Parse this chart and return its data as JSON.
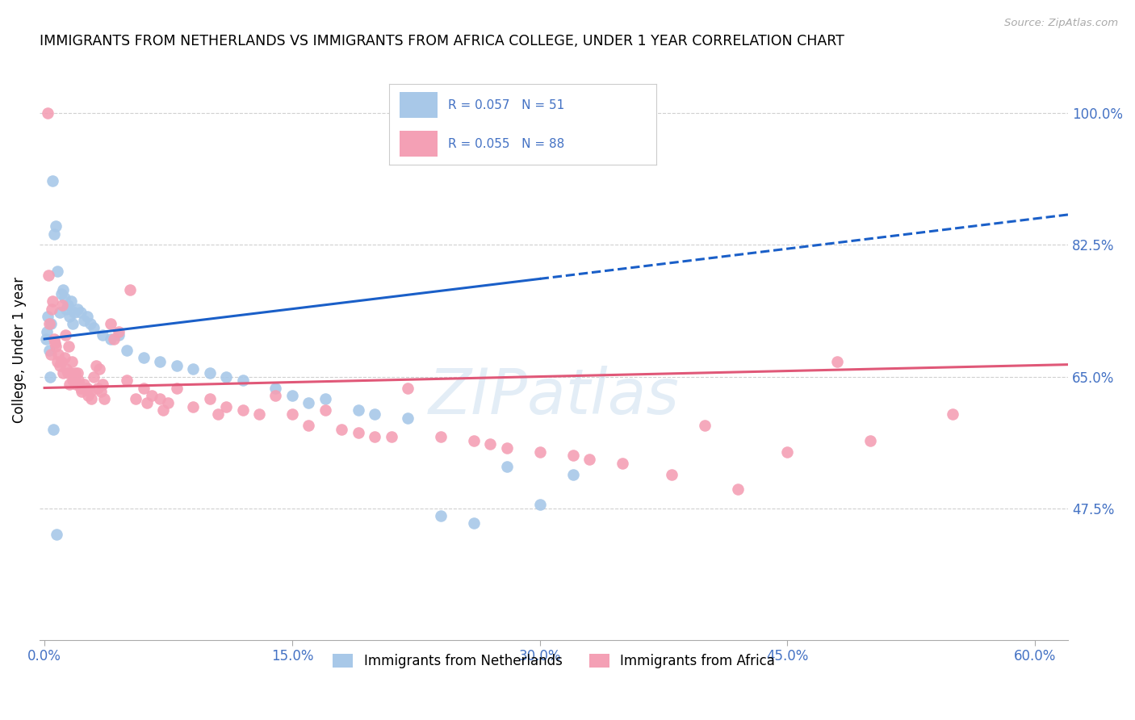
{
  "title": "IMMIGRANTS FROM NETHERLANDS VS IMMIGRANTS FROM AFRICA COLLEGE, UNDER 1 YEAR CORRELATION CHART",
  "source": "Source: ZipAtlas.com",
  "ylabel": "College, Under 1 year",
  "x_min": 0.0,
  "x_max": 60.0,
  "y_min": 30.0,
  "y_max": 107.0,
  "y_ticks": [
    47.5,
    65.0,
    82.5,
    100.0
  ],
  "x_ticks": [
    0.0,
    15.0,
    30.0,
    45.0,
    60.0
  ],
  "legend_label1": "Immigrants from Netherlands",
  "legend_label2": "Immigrants from Africa",
  "R1": "0.057",
  "N1": "51",
  "R2": "0.055",
  "N2": "88",
  "color_netherlands": "#a8c8e8",
  "color_africa": "#f4a0b5",
  "color_trend_netherlands": "#1a5fc8",
  "color_trend_africa": "#e05878",
  "color_text": "#4472c4",
  "color_grid": "#d0d0d0",
  "color_source": "#aaaaaa",
  "netherlands_x": [
    0.1,
    0.2,
    0.3,
    0.4,
    0.5,
    0.6,
    0.7,
    0.8,
    0.9,
    1.0,
    1.1,
    1.2,
    1.3,
    1.4,
    1.5,
    1.6,
    1.7,
    1.8,
    2.0,
    2.2,
    2.4,
    2.6,
    2.8,
    3.0,
    3.5,
    4.0,
    4.5,
    5.0,
    6.0,
    7.0,
    8.0,
    9.0,
    10.0,
    11.0,
    12.0,
    14.0,
    15.0,
    17.0,
    19.0,
    20.0,
    22.0,
    24.0,
    26.0,
    28.0,
    30.0,
    32.0,
    0.15,
    0.35,
    0.55,
    0.75,
    16.0
  ],
  "netherlands_y": [
    70.0,
    73.0,
    68.5,
    72.0,
    91.0,
    84.0,
    85.0,
    79.0,
    73.5,
    76.0,
    76.5,
    75.5,
    74.0,
    74.5,
    73.0,
    75.0,
    72.0,
    73.5,
    74.0,
    73.5,
    72.5,
    73.0,
    72.0,
    71.5,
    70.5,
    70.0,
    70.5,
    68.5,
    67.5,
    67.0,
    66.5,
    66.0,
    65.5,
    65.0,
    64.5,
    63.5,
    62.5,
    62.0,
    60.5,
    60.0,
    59.5,
    46.5,
    45.5,
    53.0,
    48.0,
    52.0,
    71.0,
    65.0,
    58.0,
    44.0,
    61.5
  ],
  "africa_x": [
    0.2,
    0.3,
    0.4,
    0.5,
    0.6,
    0.7,
    0.8,
    0.9,
    1.0,
    1.1,
    1.2,
    1.3,
    1.4,
    1.5,
    1.6,
    1.7,
    1.8,
    1.9,
    2.0,
    2.1,
    2.2,
    2.4,
    2.6,
    2.8,
    3.0,
    3.2,
    3.4,
    3.6,
    4.0,
    4.5,
    5.0,
    5.5,
    6.0,
    6.5,
    7.0,
    7.5,
    8.0,
    9.0,
    10.0,
    11.0,
    12.0,
    13.0,
    14.0,
    15.0,
    16.0,
    17.0,
    18.0,
    19.0,
    20.0,
    22.0,
    24.0,
    26.0,
    28.0,
    30.0,
    32.0,
    35.0,
    40.0,
    45.0,
    50.0,
    55.0,
    0.25,
    0.45,
    0.65,
    0.85,
    1.05,
    1.25,
    1.45,
    1.65,
    1.85,
    2.05,
    2.25,
    2.45,
    2.65,
    2.85,
    3.1,
    3.3,
    3.5,
    4.2,
    5.2,
    6.2,
    7.2,
    10.5,
    21.0,
    27.0,
    33.0,
    38.0,
    42.0,
    48.0
  ],
  "africa_y": [
    100.0,
    72.0,
    68.0,
    75.0,
    70.0,
    69.0,
    67.0,
    66.5,
    67.0,
    65.5,
    67.5,
    66.0,
    65.5,
    64.0,
    65.5,
    64.5,
    65.0,
    64.0,
    65.5,
    64.0,
    63.5,
    64.0,
    63.5,
    63.0,
    65.0,
    63.5,
    63.0,
    62.0,
    72.0,
    71.0,
    64.5,
    62.0,
    63.5,
    62.5,
    62.0,
    61.5,
    63.5,
    61.0,
    62.0,
    61.0,
    60.5,
    60.0,
    62.5,
    60.0,
    58.5,
    60.5,
    58.0,
    57.5,
    57.0,
    63.5,
    57.0,
    56.5,
    55.5,
    55.0,
    54.5,
    53.5,
    58.5,
    55.0,
    56.5,
    60.0,
    78.5,
    74.0,
    69.5,
    68.0,
    74.5,
    70.5,
    69.0,
    67.0,
    65.5,
    64.5,
    63.0,
    63.5,
    62.5,
    62.0,
    66.5,
    66.0,
    64.0,
    70.0,
    76.5,
    61.5,
    60.5,
    60.0,
    57.0,
    56.0,
    54.0,
    52.0,
    50.0,
    67.0
  ]
}
